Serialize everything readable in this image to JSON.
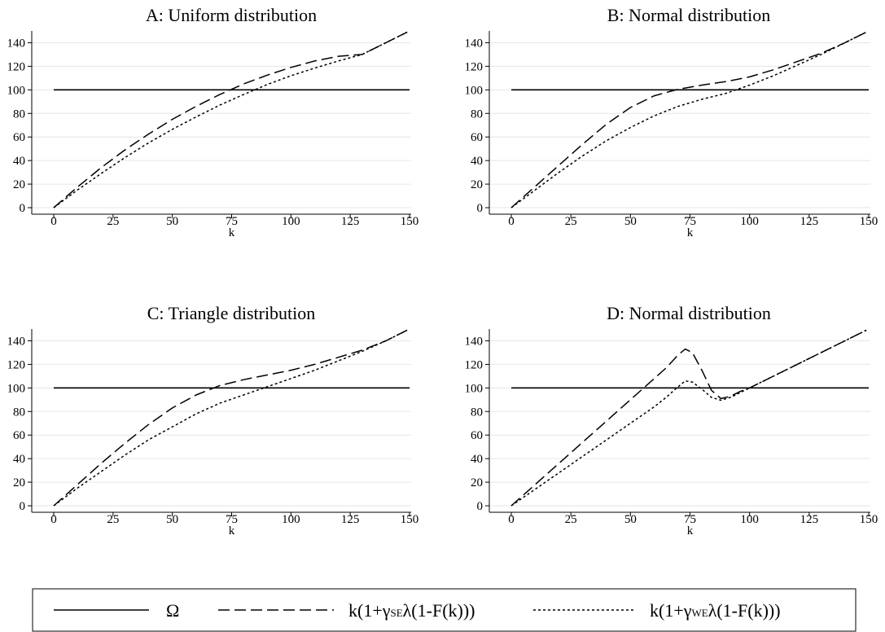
{
  "legend": {
    "items": [
      {
        "label": "Ω",
        "style": "solid"
      },
      {
        "label": "k(1+γSEλ(1-F(k)))",
        "style": "dashed",
        "base": "k(1+γ",
        "sub": "SE",
        "tail": "λ(1-F(k)))"
      },
      {
        "label": "k(1+γWEλ(1-F(k)))",
        "style": "dotted",
        "base": "k(1+γ",
        "sub": "WE",
        "tail": "λ(1-F(k)))"
      }
    ]
  },
  "chart_data": [
    {
      "type": "line",
      "title": "A: Uniform distribution",
      "xlabel": "k",
      "ylabel": "",
      "xlim": [
        0,
        150
      ],
      "ylim": [
        0,
        150
      ],
      "xticks": [
        0,
        25,
        50,
        75,
        100,
        125,
        150
      ],
      "yticks": [
        0,
        20,
        40,
        60,
        80,
        100,
        120,
        140
      ],
      "grid": true,
      "series": [
        {
          "name": "Ω",
          "style": "solid",
          "x": [
            0,
            150
          ],
          "y": [
            100,
            100
          ]
        },
        {
          "name": "k(1+γSEλ(1-F(k)))",
          "style": "dashed",
          "x": [
            0,
            10,
            20,
            30,
            40,
            50,
            60,
            70,
            80,
            90,
            100,
            110,
            120,
            130,
            140,
            149
          ],
          "y": [
            0,
            17.5,
            34,
            49,
            62.5,
            75,
            86,
            96,
            105,
            112.5,
            119,
            124.5,
            128.5,
            130,
            140,
            149
          ]
        },
        {
          "name": "k(1+γWEλ(1-F(k)))",
          "style": "dotted",
          "x": [
            0,
            10,
            20,
            30,
            40,
            50,
            60,
            70,
            80,
            90,
            100,
            110,
            120,
            130,
            140,
            149
          ],
          "y": [
            0,
            15,
            29,
            42.5,
            55,
            66.5,
            77,
            87,
            96,
            104.5,
            112,
            118.5,
            124.5,
            130,
            140,
            149
          ]
        }
      ]
    },
    {
      "type": "line",
      "title": "B: Normal distribution",
      "xlabel": "k",
      "ylabel": "",
      "xlim": [
        0,
        150
      ],
      "ylim": [
        0,
        150
      ],
      "xticks": [
        0,
        25,
        50,
        75,
        100,
        125,
        150
      ],
      "yticks": [
        0,
        20,
        40,
        60,
        80,
        100,
        120,
        140
      ],
      "grid": true,
      "series": [
        {
          "name": "Ω",
          "style": "solid",
          "x": [
            0,
            150
          ],
          "y": [
            100,
            100
          ]
        },
        {
          "name": "k(1+γSEλ(1-F(k)))",
          "style": "dashed",
          "x": [
            0,
            10,
            20,
            30,
            40,
            50,
            60,
            70,
            80,
            90,
            100,
            110,
            120,
            130,
            140,
            149
          ],
          "y": [
            0,
            18,
            36,
            54,
            71,
            85,
            95,
            100.5,
            104,
            107,
            111,
            117,
            124,
            131,
            140,
            149
          ]
        },
        {
          "name": "k(1+γWEλ(1-F(k)))",
          "style": "dotted",
          "x": [
            0,
            10,
            20,
            30,
            40,
            50,
            60,
            70,
            80,
            90,
            100,
            110,
            120,
            130,
            140,
            149
          ],
          "y": [
            0,
            15,
            30,
            44,
            57,
            68,
            78,
            86,
            92,
            97,
            104,
            112,
            121,
            130,
            140,
            149
          ]
        }
      ]
    },
    {
      "type": "line",
      "title": "C: Triangle distribution",
      "xlabel": "k",
      "ylabel": "",
      "xlim": [
        0,
        150
      ],
      "ylim": [
        0,
        150
      ],
      "xticks": [
        0,
        25,
        50,
        75,
        100,
        125,
        150
      ],
      "yticks": [
        0,
        20,
        40,
        60,
        80,
        100,
        120,
        140
      ],
      "grid": true,
      "series": [
        {
          "name": "Ω",
          "style": "solid",
          "x": [
            0,
            150
          ],
          "y": [
            100,
            100
          ]
        },
        {
          "name": "k(1+γSEλ(1-F(k)))",
          "style": "dashed",
          "x": [
            0,
            10,
            20,
            30,
            40,
            50,
            60,
            70,
            80,
            90,
            100,
            110,
            120,
            130,
            140,
            149
          ],
          "y": [
            0,
            18,
            36,
            53,
            69,
            83,
            94,
            102,
            107,
            111,
            115,
            120,
            126,
            132,
            140,
            149
          ]
        },
        {
          "name": "k(1+γWEλ(1-F(k)))",
          "style": "dotted",
          "x": [
            0,
            10,
            20,
            30,
            40,
            50,
            60,
            70,
            80,
            90,
            100,
            110,
            120,
            130,
            140,
            149
          ],
          "y": [
            0,
            15,
            29,
            43,
            56,
            67,
            78,
            87,
            94,
            101,
            108,
            115,
            123,
            131,
            140,
            149
          ]
        }
      ]
    },
    {
      "type": "line",
      "title": "D: Normal distribution",
      "xlabel": "k",
      "ylabel": "",
      "xlim": [
        0,
        150
      ],
      "ylim": [
        0,
        150
      ],
      "xticks": [
        0,
        25,
        50,
        75,
        100,
        125,
        150
      ],
      "yticks": [
        0,
        20,
        40,
        60,
        80,
        100,
        120,
        140
      ],
      "grid": true,
      "series": [
        {
          "name": "Ω",
          "style": "solid",
          "x": [
            0,
            150
          ],
          "y": [
            100,
            100
          ]
        },
        {
          "name": "k(1+γSEλ(1-F(k)))",
          "style": "dashed",
          "x": [
            0,
            10,
            20,
            30,
            40,
            50,
            60,
            65,
            70,
            73,
            76,
            80,
            84,
            88,
            92,
            96,
            100,
            110,
            120,
            130,
            140,
            149
          ],
          "y": [
            0,
            18,
            36,
            54,
            72,
            90,
            108,
            117,
            128,
            133,
            130,
            115,
            98,
            91,
            93,
            97,
            100,
            110,
            120,
            130,
            140,
            149
          ]
        },
        {
          "name": "k(1+γWEλ(1-F(k)))",
          "style": "dotted",
          "x": [
            0,
            10,
            20,
            30,
            40,
            50,
            60,
            65,
            70,
            73,
            76,
            80,
            84,
            88,
            92,
            96,
            100,
            110,
            120,
            130,
            140,
            149
          ],
          "y": [
            0,
            14,
            28,
            42,
            56,
            70,
            84,
            92,
            101,
            106,
            105,
            99,
            92,
            89.5,
            92,
            96,
            100,
            110,
            120,
            130,
            140,
            149
          ]
        }
      ]
    }
  ]
}
